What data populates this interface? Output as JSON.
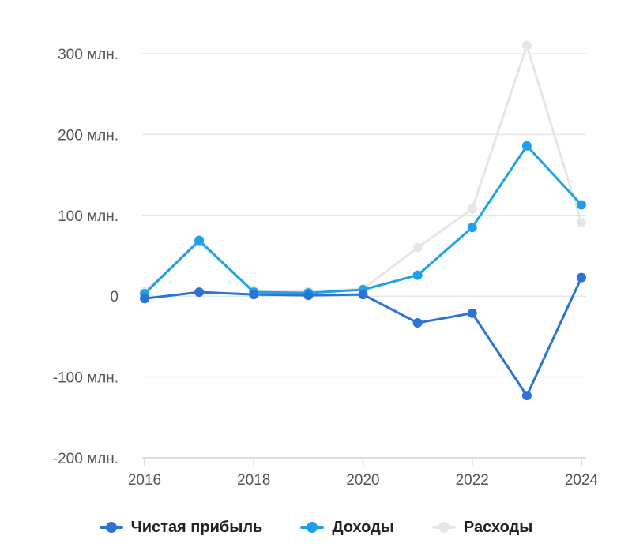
{
  "chart_data": {
    "type": "line",
    "x": [
      "2016",
      "2017",
      "2018",
      "2019",
      "2020",
      "2021",
      "2022",
      "2023",
      "2024"
    ],
    "xticks": [
      "2016",
      "2018",
      "2020",
      "2022",
      "2024"
    ],
    "yticks": [
      {
        "value": 300,
        "label": "300 млн."
      },
      {
        "value": 200,
        "label": "200 млн."
      },
      {
        "value": 100,
        "label": "100 млн."
      },
      {
        "value": 0,
        "label": "0"
      },
      {
        "value": -100,
        "label": "-100 млн."
      },
      {
        "value": -200,
        "label": "-200 млн."
      }
    ],
    "ylim": [
      -200,
      300
    ],
    "grid": true,
    "legend_position": "bottom",
    "series": [
      {
        "name": "Расходы",
        "color": "#e6e6e6",
        "values": [
          6,
          66,
          7,
          6,
          9,
          60,
          108,
          310,
          91
        ]
      },
      {
        "name": "Доходы",
        "color": "#1da1e8",
        "values": [
          3,
          69,
          5,
          4,
          8,
          26,
          85,
          186,
          113
        ]
      },
      {
        "name": "Чистая прибыль",
        "color": "#2d73d6",
        "values": [
          -3,
          5,
          2,
          1,
          2,
          -33,
          -21,
          -123,
          23
        ]
      }
    ],
    "legend_order": [
      "Чистая прибыль",
      "Доходы",
      "Расходы"
    ]
  }
}
